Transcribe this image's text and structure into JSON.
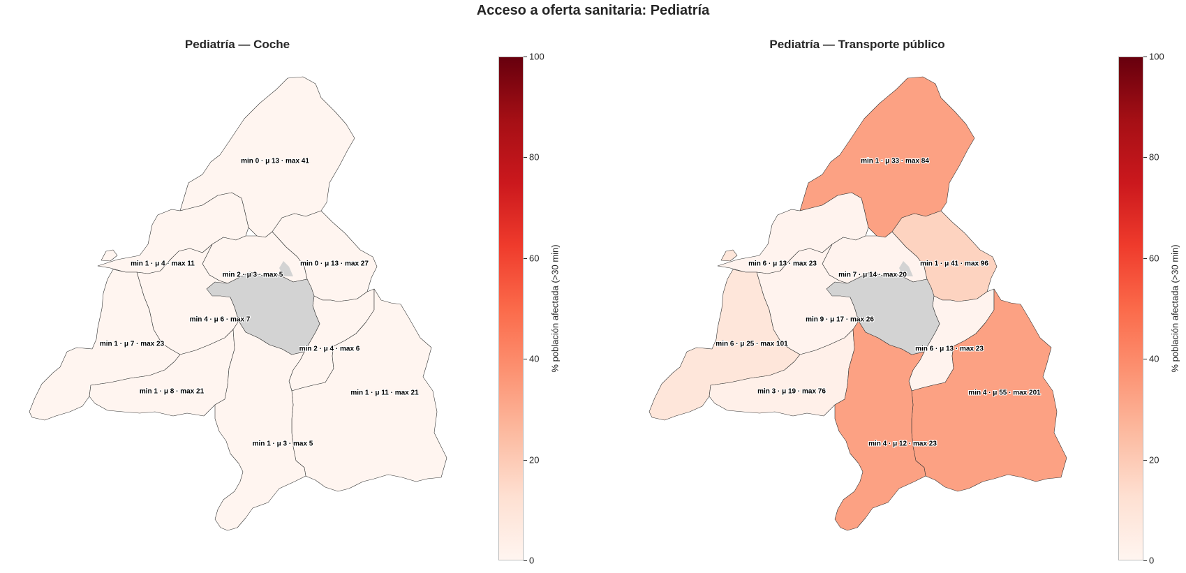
{
  "suptitle": "Acceso a oferta sanitaria: Pediatría",
  "colorbar": {
    "label": "% población afectada (>30 min)",
    "ticks": [
      "0",
      "20",
      "40",
      "60",
      "80",
      "100"
    ],
    "range": [
      0,
      100
    ],
    "colormap": [
      "#fff5f0",
      "#fee0d2",
      "#fcbba1",
      "#fc9272",
      "#fb6a4a",
      "#ef3b2c",
      "#cb181d",
      "#a50f15",
      "#67000d"
    ]
  },
  "no_data_color": "#d3d3d3",
  "chart_data": [
    {
      "type": "choropleth",
      "title": "Pediatría — Coche",
      "regions": [
        {
          "id": "north",
          "label": "min 0 · μ 13 · max 41",
          "value": 0
        },
        {
          "id": "northwest",
          "label": "min 1 · μ 4 · max 11",
          "value": 0
        },
        {
          "id": "northcentral",
          "label": "min 2 · μ 3 · max 5",
          "value": 0
        },
        {
          "id": "northeast",
          "label": "min 0 · μ 13 · max 27",
          "value": 0
        },
        {
          "id": "west",
          "label": "min 4 · μ 6 · max 7",
          "value": 0
        },
        {
          "id": "farwest",
          "label": "min 1 · μ 7 · max 23",
          "value": 0
        },
        {
          "id": "east",
          "label": "min 2 · μ 4 · max 6",
          "value": 0
        },
        {
          "id": "southwest",
          "label": "min 1 · μ 8 · max 21",
          "value": 0
        },
        {
          "id": "southeast",
          "label": "min 1 · μ 11 · max 21",
          "value": 0
        },
        {
          "id": "south",
          "label": "min 1 · μ 3 · max 5",
          "value": 0
        },
        {
          "id": "capital",
          "label": "",
          "value": null
        }
      ]
    },
    {
      "type": "choropleth",
      "title": "Pediatría — Transporte público",
      "regions": [
        {
          "id": "north",
          "label": "min 1 · μ 33 · max 84",
          "value": 33
        },
        {
          "id": "northwest",
          "label": "min 6 · μ 13 · max 23",
          "value": 1
        },
        {
          "id": "northcentral",
          "label": "min 7 · μ 14 · max 20",
          "value": 1
        },
        {
          "id": "northeast",
          "label": "min 1 · μ 41 · max 96",
          "value": 17
        },
        {
          "id": "west",
          "label": "min 9 · μ 17 · max 26",
          "value": 1
        },
        {
          "id": "farwest",
          "label": "min 6 · μ 25 · max 101",
          "value": 9
        },
        {
          "id": "east",
          "label": "min 6 · μ 13 · max 23",
          "value": 1
        },
        {
          "id": "southwest",
          "label": "min 3 · μ 19 · max 76",
          "value": 3
        },
        {
          "id": "southeast",
          "label": "min 4 · μ 55 · max 201",
          "value": 33
        },
        {
          "id": "south",
          "label": "min 4 · μ 12 · max 23",
          "value": 33
        },
        {
          "id": "capital",
          "label": "",
          "value": null
        }
      ]
    }
  ]
}
